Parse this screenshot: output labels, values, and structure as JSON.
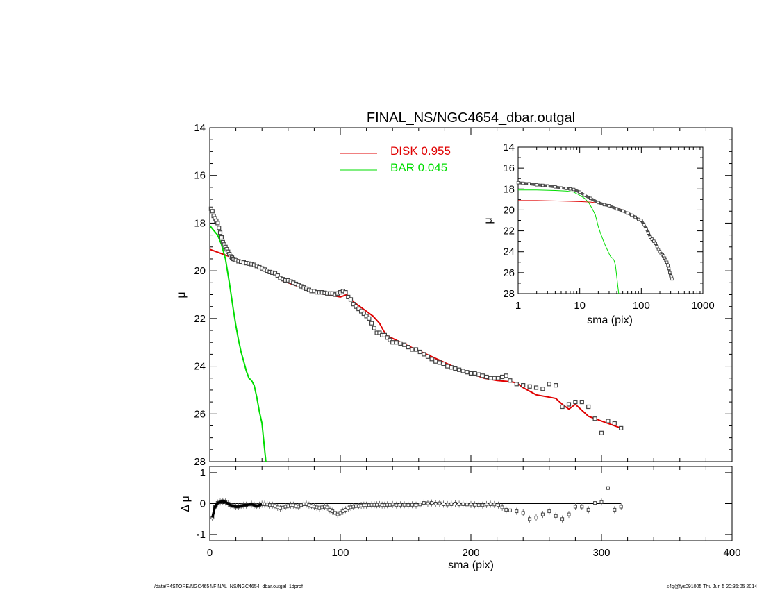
{
  "title": "FINAL_NS/NGC4654_dbar.outgal",
  "footer": {
    "left": "/data/P4STORE/NGC4654/FINAL_NS/NGC4654_dbar.outgal_1dprof",
    "right": "s4g@fys091005  Thu Jun  5 20:36:05 2014"
  },
  "colors": {
    "disk": "#e00000",
    "bar": "#00dd00",
    "data": "#444444",
    "axes": "#000000"
  },
  "chart_data": [
    {
      "id": "main",
      "type": "line",
      "xlabel": "sma (pix)",
      "ylabel": "μ",
      "xlim": [
        0,
        400
      ],
      "ylim": [
        28,
        14
      ],
      "yticks": [
        "14",
        "16",
        "18",
        "20",
        "22",
        "24",
        "26",
        "28"
      ],
      "legend": {
        "placement": "top-center",
        "entries": [
          {
            "label": "DISK  0.955",
            "color": "#e00000"
          },
          {
            "label": "BAR  0.045",
            "color": "#00dd00"
          }
        ]
      },
      "data_points": {
        "x": [
          1,
          2,
          3,
          4,
          5,
          6,
          7,
          8,
          9,
          10,
          11,
          12,
          13,
          14,
          15,
          16,
          17,
          18,
          19,
          20,
          22,
          24,
          26,
          28,
          30,
          32,
          34,
          36,
          38,
          40,
          42,
          44,
          46,
          48,
          50,
          52,
          54,
          56,
          58,
          60,
          62,
          64,
          66,
          68,
          70,
          72,
          74,
          76,
          78,
          80,
          82,
          84,
          86,
          88,
          90,
          92,
          94,
          96,
          98,
          100,
          102,
          104,
          106,
          108,
          110,
          112,
          114,
          116,
          118,
          120,
          122,
          124,
          126,
          128,
          130,
          132,
          134,
          136,
          138,
          140,
          143,
          146,
          149,
          152,
          155,
          158,
          161,
          164,
          167,
          170,
          173,
          176,
          179,
          182,
          185,
          188,
          191,
          194,
          197,
          200,
          203,
          206,
          209,
          212,
          215,
          218,
          221,
          224,
          227,
          230,
          235,
          240,
          245,
          250,
          255,
          260,
          265,
          270,
          275,
          280,
          285,
          290,
          295,
          300,
          305,
          310,
          315
        ],
        "y": [
          17.4,
          17.5,
          17.7,
          17.8,
          17.9,
          18.0,
          18.2,
          18.4,
          18.6,
          18.8,
          18.9,
          19.0,
          19.1,
          19.2,
          19.3,
          19.4,
          19.45,
          19.5,
          19.52,
          19.55,
          19.6,
          19.62,
          19.65,
          19.68,
          19.7,
          19.72,
          19.75,
          19.8,
          19.85,
          19.9,
          19.95,
          20.0,
          20.05,
          20.08,
          20.1,
          20.2,
          20.3,
          20.35,
          20.4,
          20.4,
          20.45,
          20.5,
          20.55,
          20.6,
          20.65,
          20.7,
          20.75,
          20.8,
          20.85,
          20.85,
          20.9,
          20.9,
          20.9,
          20.92,
          20.95,
          20.95,
          20.95,
          21.0,
          20.95,
          20.9,
          20.85,
          20.9,
          21.1,
          21.2,
          21.4,
          21.5,
          21.6,
          21.7,
          21.8,
          21.9,
          22.0,
          22.2,
          22.4,
          22.6,
          22.6,
          22.7,
          22.7,
          22.8,
          22.9,
          23.0,
          23.0,
          23.05,
          23.1,
          23.2,
          23.3,
          23.3,
          23.4,
          23.5,
          23.6,
          23.7,
          23.8,
          23.85,
          23.9,
          24.0,
          24.05,
          24.1,
          24.15,
          24.2,
          24.25,
          24.3,
          24.3,
          24.35,
          24.4,
          24.45,
          24.5,
          24.5,
          24.5,
          24.45,
          24.4,
          24.6,
          24.75,
          24.8,
          24.85,
          24.9,
          24.95,
          24.75,
          24.8,
          25.7,
          25.6,
          25.5,
          25.5,
          25.7,
          26.2,
          26.8,
          26.3,
          26.4,
          26.6
        ]
      },
      "series": [
        {
          "name": "DISK",
          "color": "#e00000",
          "x": [
            0,
            20,
            40,
            50,
            55,
            60,
            70,
            80,
            90,
            100,
            105,
            110,
            120,
            125,
            130,
            135,
            150,
            170,
            190,
            200,
            210,
            220,
            230,
            235,
            240,
            250,
            260,
            265,
            270,
            275,
            280,
            290,
            300,
            315
          ],
          "y": [
            19.1,
            19.5,
            19.9,
            20.1,
            20.4,
            20.5,
            20.7,
            20.9,
            21.0,
            21.1,
            21.0,
            21.3,
            21.7,
            21.9,
            22.2,
            22.7,
            23.1,
            23.6,
            24.1,
            24.3,
            24.5,
            24.6,
            24.65,
            24.7,
            24.9,
            25.2,
            25.3,
            25.35,
            25.6,
            25.8,
            25.6,
            26.1,
            26.3,
            26.6
          ]
        },
        {
          "name": "BAR",
          "color": "#00dd00",
          "x": [
            0,
            3,
            6,
            9,
            12,
            15,
            18,
            20,
            22,
            24,
            26,
            28,
            30,
            32,
            34,
            36,
            38,
            40,
            42,
            43
          ],
          "y": [
            18.1,
            18.3,
            18.5,
            18.9,
            19.5,
            20.5,
            21.6,
            22.3,
            22.9,
            23.4,
            23.8,
            24.2,
            24.5,
            24.6,
            24.8,
            25.3,
            25.9,
            26.4,
            27.5,
            28.0
          ]
        }
      ]
    },
    {
      "id": "residual",
      "type": "scatter",
      "xlabel": "sma (pix)",
      "ylabel": "Δ μ",
      "xlim": [
        0,
        400
      ],
      "ylim": [
        -1.2,
        1.2
      ],
      "xticks": [
        "0",
        "100",
        "200",
        "300",
        "400"
      ],
      "yticks": [
        "-1",
        "0",
        "1"
      ],
      "x": [
        2,
        4,
        6,
        8,
        10,
        12,
        14,
        16,
        18,
        20,
        22,
        24,
        26,
        28,
        30,
        32,
        34,
        36,
        38,
        40,
        42,
        44,
        46,
        48,
        50,
        52,
        54,
        56,
        58,
        60,
        62,
        64,
        66,
        68,
        70,
        72,
        74,
        76,
        78,
        80,
        82,
        84,
        86,
        88,
        90,
        92,
        94,
        96,
        98,
        100,
        102,
        104,
        106,
        108,
        110,
        112,
        114,
        116,
        118,
        120,
        122,
        124,
        126,
        128,
        130,
        132,
        134,
        136,
        138,
        140,
        143,
        146,
        149,
        152,
        155,
        158,
        161,
        164,
        167,
        170,
        173,
        176,
        179,
        182,
        185,
        188,
        191,
        194,
        197,
        200,
        203,
        206,
        209,
        212,
        215,
        218,
        221,
        224,
        227,
        230,
        235,
        240,
        245,
        250,
        255,
        260,
        265,
        270,
        275,
        280,
        285,
        290,
        295,
        300,
        305,
        310,
        315
      ],
      "y": [
        -0.45,
        -0.1,
        0.02,
        0.05,
        0.08,
        0.05,
        0.0,
        -0.05,
        -0.08,
        -0.1,
        -0.1,
        -0.08,
        -0.05,
        -0.05,
        -0.03,
        -0.02,
        -0.05,
        -0.08,
        -0.05,
        -0.02,
        -0.02,
        -0.03,
        -0.05,
        -0.05,
        -0.08,
        -0.12,
        -0.15,
        -0.13,
        -0.1,
        -0.08,
        -0.05,
        -0.05,
        -0.08,
        -0.1,
        -0.05,
        -0.02,
        -0.02,
        -0.05,
        -0.08,
        -0.1,
        -0.12,
        -0.15,
        -0.12,
        -0.1,
        -0.12,
        -0.2,
        -0.25,
        -0.3,
        -0.35,
        -0.3,
        -0.25,
        -0.2,
        -0.15,
        -0.12,
        -0.1,
        -0.08,
        -0.08,
        -0.06,
        -0.05,
        -0.05,
        -0.05,
        -0.04,
        -0.04,
        -0.04,
        -0.03,
        -0.05,
        -0.05,
        -0.04,
        -0.04,
        -0.03,
        -0.05,
        -0.04,
        -0.04,
        -0.05,
        -0.04,
        -0.05,
        -0.03,
        0.02,
        0.01,
        0.02,
        0.0,
        0.01,
        -0.02,
        -0.03,
        -0.02,
        0.0,
        -0.02,
        -0.02,
        -0.03,
        -0.03,
        -0.04,
        -0.05,
        -0.05,
        -0.03,
        -0.02,
        -0.03,
        -0.05,
        -0.12,
        -0.2,
        -0.22,
        -0.25,
        -0.3,
        -0.5,
        -0.45,
        -0.35,
        -0.25,
        -0.4,
        -0.5,
        -0.35,
        -0.1,
        -0.1,
        -0.2,
        0.02,
        0.05,
        0.5,
        -0.2,
        -0.1
      ],
      "zero_line": 0
    },
    {
      "id": "inset",
      "type": "line",
      "xlabel": "sma (pix)",
      "ylabel": "μ",
      "x_scale": "log",
      "xlim": [
        1,
        1000
      ],
      "ylim": [
        28,
        14
      ],
      "xticks": [
        "1",
        "10",
        "100",
        "1000"
      ],
      "yticks": [
        "14",
        "16",
        "18",
        "20",
        "22",
        "24",
        "26",
        "28"
      ],
      "data_points": {
        "x": [
          1,
          1.2,
          1.5,
          2,
          2.5,
          3,
          4,
          5,
          6,
          7,
          8,
          10,
          12,
          15,
          20,
          25,
          30,
          40,
          50,
          60,
          70,
          80,
          90,
          100,
          110,
          120,
          130,
          140,
          150,
          160,
          170,
          180,
          190,
          200,
          210,
          220,
          230,
          240,
          250,
          260,
          270,
          280,
          290,
          300,
          310,
          315
        ],
        "y": [
          17.4,
          17.45,
          17.5,
          17.6,
          17.65,
          17.7,
          17.8,
          17.9,
          17.95,
          18.0,
          18.05,
          18.3,
          18.6,
          18.9,
          19.3,
          19.5,
          19.6,
          19.9,
          20.1,
          20.3,
          20.5,
          20.7,
          20.9,
          21.0,
          21.4,
          21.8,
          22.2,
          22.6,
          22.8,
          23.0,
          23.2,
          23.5,
          23.8,
          24.0,
          24.2,
          24.3,
          24.4,
          24.6,
          24.8,
          25.0,
          25.3,
          25.6,
          26.0,
          26.3,
          26.4,
          26.6
        ]
      },
      "series": [
        {
          "name": "DISK",
          "color": "#e00000",
          "x": [
            1,
            2,
            5,
            10,
            15,
            20,
            25,
            30,
            40,
            50,
            70,
            100,
            130,
            160,
            200,
            250,
            300,
            315
          ],
          "y": [
            19.1,
            19.1,
            19.15,
            19.2,
            19.25,
            19.35,
            19.45,
            19.55,
            19.8,
            20.0,
            20.5,
            21.1,
            22.1,
            23.0,
            24.1,
            24.9,
            26.2,
            26.6
          ]
        },
        {
          "name": "BAR",
          "color": "#00dd00",
          "x": [
            1,
            2,
            4,
            6,
            8,
            10,
            12,
            14,
            16,
            18,
            20,
            22,
            24,
            26,
            28,
            30,
            32,
            34,
            36,
            38,
            40,
            42,
            43
          ],
          "y": [
            18.1,
            18.1,
            18.15,
            18.2,
            18.3,
            18.6,
            18.9,
            19.3,
            19.9,
            20.5,
            21.6,
            22.3,
            22.9,
            23.4,
            23.8,
            24.2,
            24.5,
            24.6,
            24.8,
            25.3,
            26.4,
            27.5,
            28.0
          ]
        }
      ]
    }
  ]
}
